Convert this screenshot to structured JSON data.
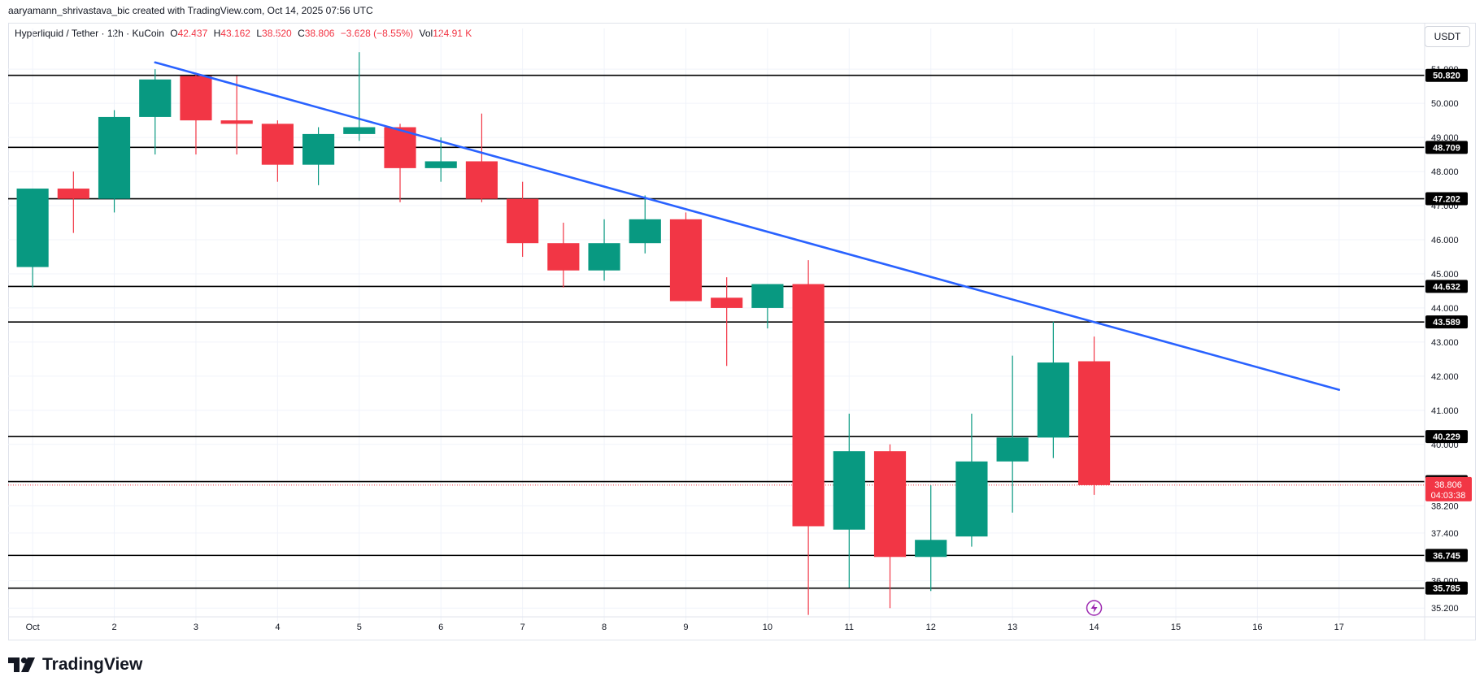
{
  "caption": "aaryamann_shrivastava_bic created with TradingView.com, Oct 14, 2025 07:56 UTC",
  "legend": {
    "symbol": "Hyperliquid / Tether · 12h · KuCoin",
    "o_label": "O",
    "o_value": "42.437",
    "h_label": "H",
    "h_value": "43.162",
    "l_label": "L",
    "l_value": "38.520",
    "c_label": "C",
    "c_value": "38.806",
    "change": "−3.628 (−8.55%)",
    "vol_label": "Vol",
    "vol_value": "124.91 K"
  },
  "currency_button": "USDT",
  "brand": "TradingView",
  "colors": {
    "up": "#089981",
    "down": "#f23645",
    "trendline": "#2962ff",
    "level": "#000000",
    "price_badge": "#f23645",
    "replay_icon": "#9c27b0"
  },
  "icons": [
    "trendingview-logo-icon",
    "replay-lightning-icon"
  ],
  "chart_data": {
    "type": "candlestick",
    "title": "Hyperliquid / Tether · 12h · KuCoin",
    "x_axis": {
      "ticks": [
        {
          "label": "Oct",
          "t": 1
        },
        {
          "label": "2",
          "t": 2
        },
        {
          "label": "3",
          "t": 3
        },
        {
          "label": "4",
          "t": 4
        },
        {
          "label": "5",
          "t": 5
        },
        {
          "label": "6",
          "t": 6
        },
        {
          "label": "7",
          "t": 7
        },
        {
          "label": "8",
          "t": 8
        },
        {
          "label": "9",
          "t": 9
        },
        {
          "label": "10",
          "t": 10
        },
        {
          "label": "11",
          "t": 11
        },
        {
          "label": "12",
          "t": 12
        },
        {
          "label": "13",
          "t": 13
        },
        {
          "label": "14",
          "t": 14
        },
        {
          "label": "15",
          "t": 15
        },
        {
          "label": "16",
          "t": 16
        },
        {
          "label": "17",
          "t": 17
        }
      ],
      "range": [
        0.7,
        17.45
      ]
    },
    "y_axis": {
      "ticks": [
        "35.200",
        "36.000",
        "37.400",
        "38.200",
        "40.000",
        "41.000",
        "42.000",
        "43.000",
        "44.000",
        "45.000",
        "46.000",
        "47.000",
        "48.000",
        "49.000",
        "50.000",
        "51.000"
      ],
      "range": [
        34.8,
        51.6
      ]
    },
    "candles": [
      {
        "t": 1.0,
        "o": 45.2,
        "h": 47.5,
        "l": 44.6,
        "c": 47.5
      },
      {
        "t": 1.5,
        "o": 47.5,
        "h": 48.0,
        "l": 46.2,
        "c": 47.2
      },
      {
        "t": 2.0,
        "o": 47.2,
        "h": 49.8,
        "l": 46.8,
        "c": 49.6
      },
      {
        "t": 2.5,
        "o": 49.6,
        "h": 51.0,
        "l": 48.5,
        "c": 50.7
      },
      {
        "t": 3.0,
        "o": 50.8,
        "h": 50.9,
        "l": 48.5,
        "c": 49.5
      },
      {
        "t": 3.5,
        "o": 49.5,
        "h": 50.8,
        "l": 48.5,
        "c": 49.4
      },
      {
        "t": 4.0,
        "o": 49.4,
        "h": 49.5,
        "l": 47.7,
        "c": 48.2
      },
      {
        "t": 4.5,
        "o": 48.2,
        "h": 49.3,
        "l": 47.6,
        "c": 49.1
      },
      {
        "t": 5.0,
        "o": 49.1,
        "h": 51.5,
        "l": 48.9,
        "c": 49.3
      },
      {
        "t": 5.5,
        "o": 49.3,
        "h": 49.4,
        "l": 47.1,
        "c": 48.1
      },
      {
        "t": 6.0,
        "o": 48.1,
        "h": 49.0,
        "l": 47.7,
        "c": 48.3
      },
      {
        "t": 6.5,
        "o": 48.3,
        "h": 49.7,
        "l": 47.1,
        "c": 47.2
      },
      {
        "t": 7.0,
        "o": 47.2,
        "h": 47.7,
        "l": 45.5,
        "c": 45.9
      },
      {
        "t": 7.5,
        "o": 45.9,
        "h": 46.5,
        "l": 44.6,
        "c": 45.1
      },
      {
        "t": 8.0,
        "o": 45.1,
        "h": 46.6,
        "l": 44.8,
        "c": 45.9
      },
      {
        "t": 8.5,
        "o": 45.9,
        "h": 47.3,
        "l": 45.6,
        "c": 46.6
      },
      {
        "t": 9.0,
        "o": 46.6,
        "h": 46.8,
        "l": 44.2,
        "c": 44.2
      },
      {
        "t": 9.5,
        "o": 44.3,
        "h": 44.9,
        "l": 42.3,
        "c": 44.0
      },
      {
        "t": 10.0,
        "o": 44.0,
        "h": 44.7,
        "l": 43.4,
        "c": 44.7
      },
      {
        "t": 10.5,
        "o": 44.7,
        "h": 45.4,
        "l": 35.0,
        "c": 37.6
      },
      {
        "t": 11.0,
        "o": 37.5,
        "h": 40.9,
        "l": 35.8,
        "c": 39.8
      },
      {
        "t": 11.5,
        "o": 39.8,
        "h": 40.0,
        "l": 35.2,
        "c": 36.7
      },
      {
        "t": 12.0,
        "o": 36.7,
        "h": 38.8,
        "l": 35.7,
        "c": 37.2
      },
      {
        "t": 12.5,
        "o": 37.3,
        "h": 40.9,
        "l": 37.0,
        "c": 39.5
      },
      {
        "t": 13.0,
        "o": 39.5,
        "h": 42.6,
        "l": 38.0,
        "c": 40.2
      },
      {
        "t": 13.5,
        "o": 40.2,
        "h": 43.6,
        "l": 39.6,
        "c": 42.4
      },
      {
        "t": 14.0,
        "o": 42.437,
        "h": 43.162,
        "l": 38.52,
        "c": 38.806
      }
    ],
    "horizontal_levels": [
      {
        "value": 50.82,
        "label": "50.820"
      },
      {
        "value": 48.709,
        "label": "48.709"
      },
      {
        "value": 47.202,
        "label": "47.202"
      },
      {
        "value": 44.632,
        "label": "44.632"
      },
      {
        "value": 43.589,
        "label": "43.589"
      },
      {
        "value": 40.229,
        "label": "40.229"
      },
      {
        "value": 38.909,
        "label": "38.909"
      },
      {
        "value": 36.745,
        "label": "36.745"
      },
      {
        "value": 35.785,
        "label": "35.785"
      }
    ],
    "trendline": {
      "from": {
        "t": 2.5,
        "v": 51.2
      },
      "to": {
        "t": 17.0,
        "v": 41.6
      }
    },
    "last_price": {
      "value": 38.806,
      "label": "38.806",
      "countdown": "04:03:38"
    },
    "grid": true
  }
}
